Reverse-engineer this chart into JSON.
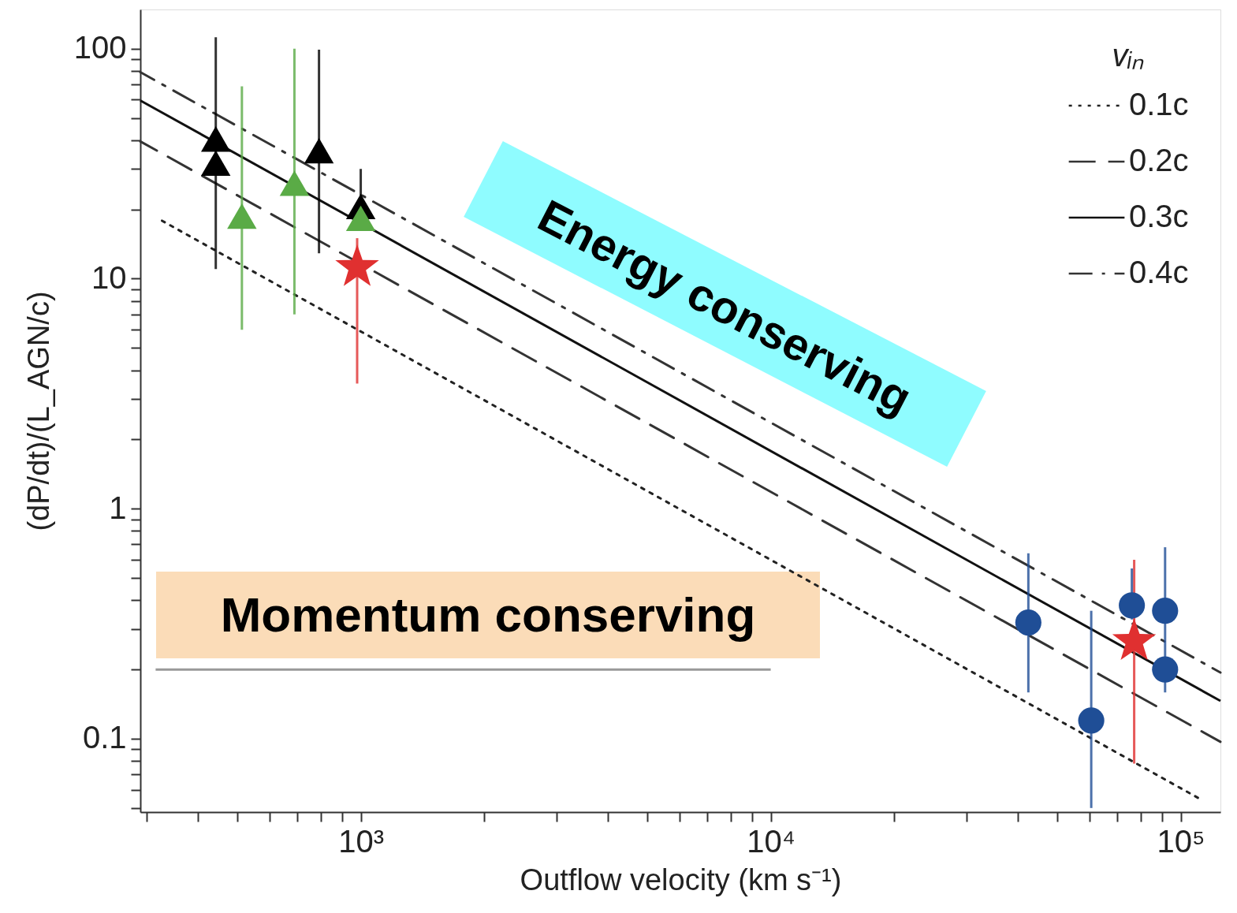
{
  "chart_data": {
    "type": "scatter",
    "xlabel": "Outflow velocity (km s⁻¹)",
    "ylabel": "(dP/dt)/(L_AGN/c)",
    "legend_title": "vᵢₙ",
    "annotations": [
      "Energy conserving",
      "Momentum conserving"
    ],
    "log": "xy",
    "xlim": [
      290,
      125000
    ],
    "ylim": [
      0.048,
      148
    ],
    "xticks": [
      {
        "value": 300,
        "label": null
      },
      {
        "value": 400,
        "label": null
      },
      {
        "value": 500,
        "label": null
      },
      {
        "value": 600,
        "label": null
      },
      {
        "value": 700,
        "label": null
      },
      {
        "value": 800,
        "label": null
      },
      {
        "value": 900,
        "label": null
      },
      {
        "value": 1000,
        "label": "10³"
      },
      {
        "value": 2000,
        "label": null
      },
      {
        "value": 3000,
        "label": null
      },
      {
        "value": 4000,
        "label": null
      },
      {
        "value": 5000,
        "label": null
      },
      {
        "value": 6000,
        "label": null
      },
      {
        "value": 7000,
        "label": null
      },
      {
        "value": 8000,
        "label": null
      },
      {
        "value": 9000,
        "label": null
      },
      {
        "value": 10000,
        "label": "10⁴"
      },
      {
        "value": 20000,
        "label": null
      },
      {
        "value": 30000,
        "label": null
      },
      {
        "value": 40000,
        "label": null
      },
      {
        "value": 50000,
        "label": null
      },
      {
        "value": 60000,
        "label": null
      },
      {
        "value": 70000,
        "label": null
      },
      {
        "value": 80000,
        "label": null
      },
      {
        "value": 90000,
        "label": null
      },
      {
        "value": 100000,
        "label": "10⁵"
      }
    ],
    "yticks": [
      {
        "value": 0.05,
        "label": null
      },
      {
        "value": 0.06,
        "label": null
      },
      {
        "value": 0.07,
        "label": null
      },
      {
        "value": 0.08,
        "label": null
      },
      {
        "value": 0.09,
        "label": null
      },
      0.1,
      {
        "value": 0.2,
        "label": null
      },
      {
        "value": 0.3,
        "label": null
      },
      {
        "value": 0.4,
        "label": null
      },
      {
        "value": 0.5,
        "label": null
      },
      {
        "value": 0.6,
        "label": null
      },
      {
        "value": 0.7,
        "label": null
      },
      {
        "value": 0.8,
        "label": null
      },
      {
        "value": 0.9,
        "label": null
      },
      1,
      {
        "value": 2,
        "label": null
      },
      {
        "value": 3,
        "label": null
      },
      {
        "value": 4,
        "label": null
      },
      {
        "value": 5,
        "label": null
      },
      {
        "value": 6,
        "label": null
      },
      {
        "value": 7,
        "label": null
      },
      {
        "value": 8,
        "label": null
      },
      {
        "value": 9,
        "label": null
      },
      10,
      {
        "value": 20,
        "label": null
      },
      {
        "value": 30,
        "label": null
      },
      {
        "value": 40,
        "label": null
      },
      {
        "value": 50,
        "label": null
      },
      {
        "value": 60,
        "label": null
      },
      {
        "value": 70,
        "label": null
      },
      {
        "value": 80,
        "label": null
      },
      {
        "value": 90,
        "label": null
      },
      100
    ],
    "grid": false,
    "legend": "top right",
    "series": [
      {
        "name": "0.1c",
        "type": "line",
        "line_style": "dotted",
        "color": "#222222",
        "x": [
          325,
          113000
        ],
        "values": [
          18,
          0.054
        ]
      },
      {
        "name": "0.2c",
        "type": "line",
        "line_style": "dashed",
        "color": "#333333",
        "x": [
          290,
          125000
        ],
        "values": [
          39.5,
          0.097
        ]
      },
      {
        "name": "0.3c",
        "type": "line",
        "line_style": "solid",
        "color": "#111111",
        "x": [
          290,
          125000
        ],
        "values": [
          59.5,
          0.146
        ]
      },
      {
        "name": "0.4c",
        "type": "line",
        "line_style": "dashdot",
        "color": "#333333",
        "x": [
          290,
          125000
        ],
        "values": [
          79,
          0.194
        ]
      },
      {
        "type": "line",
        "line_style": "solid",
        "color": "#999999",
        "x": [
          316,
          10000
        ],
        "values": [
          0.2,
          0.2
        ]
      },
      {
        "marker": "triangle",
        "color": "#000000",
        "x": [
          443,
          443,
          791,
          1000
        ],
        "values": [
          40.5,
          31.8,
          36,
          20.6
        ],
        "errors": [
          [
            11.0,
            112
          ],
          null,
          [
            12.9,
            99
          ],
          [
            20.6,
            30
          ]
        ]
      },
      {
        "marker": "triangle",
        "color": "#5aab46",
        "x": [
          513,
          689,
          1000
        ],
        "values": [
          18.7,
          26,
          18.3
        ],
        "errors": [
          [
            6.0,
            68.6
          ],
          [
            7.0,
            100
          ],
          null
        ]
      },
      {
        "marker": "star",
        "color": "#e03030",
        "x": [
          980,
          77000
        ],
        "values": [
          11.2,
          0.265
        ],
        "errors": [
          [
            3.5,
            15
          ],
          [
            0.078,
            0.6
          ]
        ]
      },
      {
        "marker": "circle",
        "color": "#1f4e96",
        "x": [
          42500,
          60500,
          76000,
          91600,
          91600
        ],
        "values": [
          0.32,
          0.12,
          0.38,
          0.36,
          0.2
        ],
        "errors": [
          [
            0.159,
            0.64
          ],
          [
            0.05,
            0.36
          ],
          [
            0.33,
            0.55
          ],
          [
            0.159,
            0.68
          ],
          null
        ]
      }
    ]
  }
}
